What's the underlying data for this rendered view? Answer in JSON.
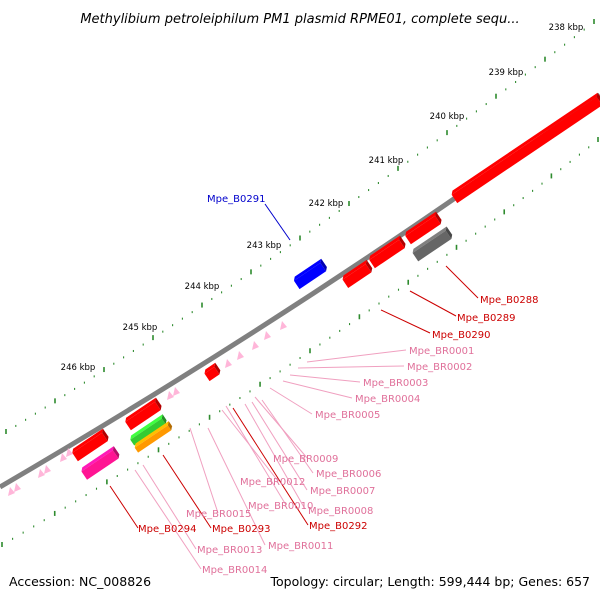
{
  "title": "Methylibium petroleiphilum PM1 plasmid RPME01, complete sequ...",
  "footer": {
    "accession": "Accession: NC_008826",
    "summary": "Topology: circular; Length: 599,444 bp; Genes: 657"
  },
  "ticks": [
    {
      "label": "238 kbp"
    },
    {
      "label": "239 kbp"
    },
    {
      "label": "240 kbp"
    },
    {
      "label": "241 kbp"
    },
    {
      "label": "242 kbp"
    },
    {
      "label": "243 kbp"
    },
    {
      "label": "244 kbp"
    },
    {
      "label": "245 kbp"
    },
    {
      "label": "246 kbp"
    }
  ],
  "colors": {
    "backbone": "#808080",
    "tick_dot": "#2e8b2e",
    "cds": "#ff0000",
    "rrna": "#ff69b4",
    "trna": "#ffb6d9",
    "blue_gene": "#0000ff",
    "gray_gene": "#666666",
    "green_gene": "#33cc33",
    "orange_gene": "#ff9900",
    "magenta_gene": "#ff1493"
  },
  "labels": [
    {
      "text": "Mpe_B0291",
      "color": "blue"
    },
    {
      "text": "Mpe_B0288",
      "color": "red"
    },
    {
      "text": "Mpe_B0289",
      "color": "red"
    },
    {
      "text": "Mpe_B0290",
      "color": "red"
    },
    {
      "text": "Mpe_BR0001",
      "color": "pink"
    },
    {
      "text": "Mpe_BR0002",
      "color": "pink"
    },
    {
      "text": "Mpe_BR0003",
      "color": "pink"
    },
    {
      "text": "Mpe_BR0004",
      "color": "pink"
    },
    {
      "text": "Mpe_BR0005",
      "color": "pink"
    },
    {
      "text": "Mpe_BR0009",
      "color": "pink"
    },
    {
      "text": "Mpe_BR0006",
      "color": "pink"
    },
    {
      "text": "Mpe_BR0012",
      "color": "pink"
    },
    {
      "text": "Mpe_BR0007",
      "color": "pink"
    },
    {
      "text": "Mpe_BR0010",
      "color": "pink"
    },
    {
      "text": "Mpe_BR0008",
      "color": "pink"
    },
    {
      "text": "Mpe_BR0015",
      "color": "pink"
    },
    {
      "text": "Mpe_B0292",
      "color": "red"
    },
    {
      "text": "Mpe_B0294",
      "color": "red"
    },
    {
      "text": "Mpe_B0293",
      "color": "red"
    },
    {
      "text": "Mpe_BR0011",
      "color": "pink"
    },
    {
      "text": "Mpe_BR0013",
      "color": "pink"
    },
    {
      "text": "Mpe_BR0014",
      "color": "pink"
    }
  ]
}
